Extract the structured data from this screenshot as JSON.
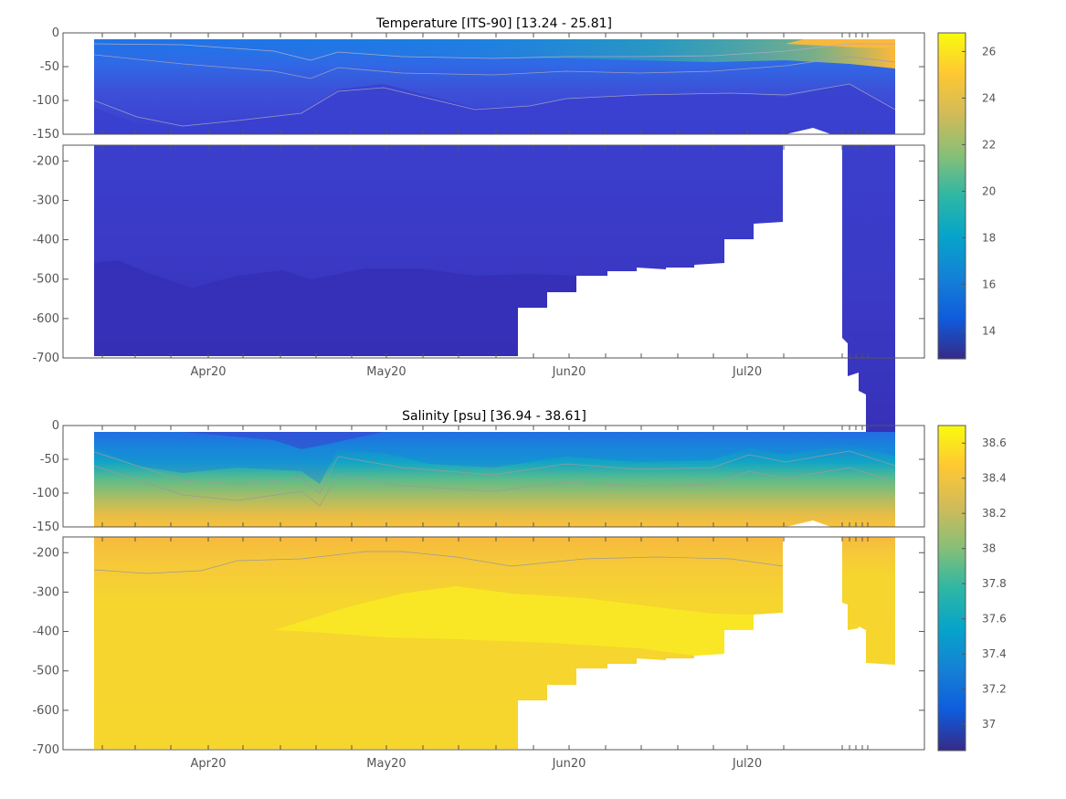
{
  "chart_data": [
    {
      "type": "heatmap",
      "title": "Temperature [ITS-90]   [13.24 - 25.81]",
      "xlabel": "",
      "ylabel": "",
      "ylim": [
        -700,
        0
      ],
      "upper_panel_ylim": [
        -150,
        0
      ],
      "lower_panel_ylim": [
        -700,
        -160
      ],
      "upper_yticks": [
        "0",
        "-50",
        "-100",
        "-150"
      ],
      "lower_yticks": [
        "-200",
        "-300",
        "-400",
        "-500",
        "-600",
        "-700"
      ],
      "xticks": [
        "Apr20",
        "May20",
        "Jun20",
        "Jul20"
      ],
      "colorbar": {
        "range": [
          12.8,
          26.8
        ],
        "ticks": [
          "14",
          "16",
          "18",
          "20",
          "22",
          "24",
          "26"
        ],
        "colormap": "parula",
        "colors": [
          "#352a87",
          "#0f5cdd",
          "#1481d6",
          "#06a4ca",
          "#2eb7a4",
          "#87bf77",
          "#d1bb59",
          "#fec832",
          "#f9fb0e"
        ]
      },
      "surface_values": {
        "Mar": 15.8,
        "Apr": 15.5,
        "May": 16.5,
        "Jun": 18.5,
        "Jul": 22.0,
        "Aug": 25.8
      },
      "deep_value": 13.3
    },
    {
      "type": "heatmap",
      "title": "Salinity [psu]   [36.94 - 38.61]",
      "xlabel": "",
      "ylabel": "",
      "ylim": [
        -700,
        0
      ],
      "upper_panel_ylim": [
        -150,
        0
      ],
      "lower_panel_ylim": [
        -700,
        -160
      ],
      "upper_yticks": [
        "0",
        "-50",
        "-100",
        "-150"
      ],
      "lower_yticks": [
        "-200",
        "-300",
        "-400",
        "-500",
        "-600",
        "-700"
      ],
      "xticks": [
        "Apr20",
        "May20",
        "Jun20",
        "Jul20"
      ],
      "colorbar": {
        "range": [
          36.85,
          38.7
        ],
        "ticks": [
          "37",
          "37.2",
          "37.4",
          "37.6",
          "37.8",
          "38",
          "38.2",
          "38.4",
          "38.6"
        ],
        "colormap": "parula",
        "colors": [
          "#352a87",
          "#0f5cdd",
          "#1481d6",
          "#06a4ca",
          "#2eb7a4",
          "#87bf77",
          "#d1bb59",
          "#fec832",
          "#f9fb0e"
        ]
      },
      "surface_value": 37.1,
      "deep_value": 38.55
    }
  ]
}
